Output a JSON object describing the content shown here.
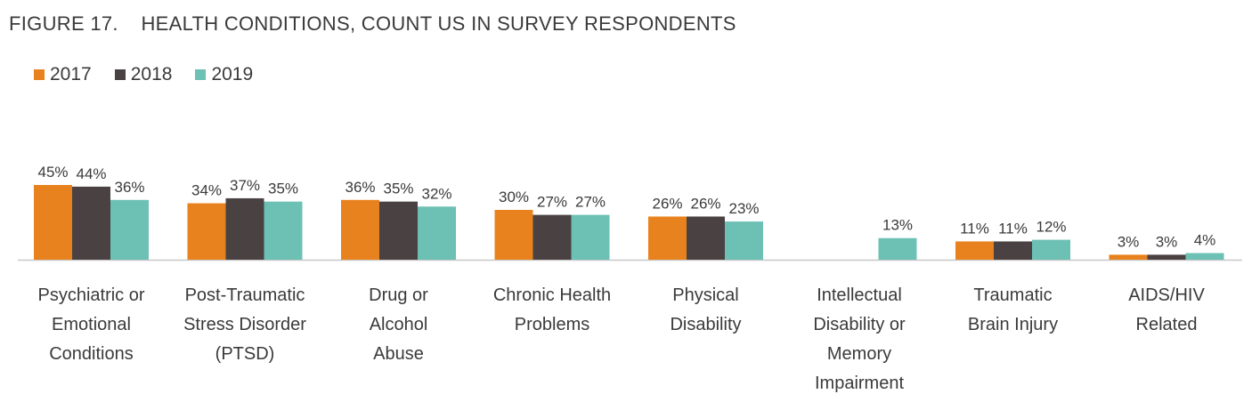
{
  "colors": {
    "2017": "#E8821E",
    "2018": "#4A4242",
    "2019": "#6CC0B4",
    "axis": "#c8c8c8",
    "text": "#3a3a3a"
  },
  "chart_data": {
    "type": "bar",
    "title": "FIGURE 17.    HEALTH CONDITIONS, COUNT US IN SURVEY RESPONDENTS",
    "legend_position": "top-left",
    "grid": false,
    "ylim": [
      0,
      50
    ],
    "categories": [
      [
        "Psychiatric or",
        "Emotional",
        "Conditions"
      ],
      [
        "Post-Traumatic",
        "Stress Disorder",
        "(PTSD)"
      ],
      [
        "Drug or",
        "Alcohol",
        "Abuse"
      ],
      [
        "Chronic Health",
        "Problems"
      ],
      [
        "Physical",
        "Disability"
      ],
      [
        "Intellectual",
        "Disability or",
        "Memory",
        "Impairment"
      ],
      [
        "Traumatic",
        "Brain Injury"
      ],
      [
        "AIDS/HIV",
        "Related"
      ]
    ],
    "series": [
      {
        "name": "2017",
        "values": [
          45,
          34,
          36,
          30,
          26,
          null,
          11,
          3
        ],
        "labels": [
          "45%",
          "34%",
          "36%",
          "30%",
          "26%",
          "",
          "11%",
          "3%"
        ]
      },
      {
        "name": "2018",
        "values": [
          44,
          37,
          35,
          27,
          26,
          null,
          11,
          3
        ],
        "labels": [
          "44%",
          "37%",
          "35%",
          "27%",
          "26%",
          "",
          "11%",
          "3%"
        ]
      },
      {
        "name": "2019",
        "values": [
          36,
          35,
          32,
          27,
          23,
          13,
          12,
          4
        ],
        "labels": [
          "36%",
          "35%",
          "32%",
          "27%",
          "23%",
          "13%",
          "12%",
          "4%"
        ]
      }
    ]
  }
}
